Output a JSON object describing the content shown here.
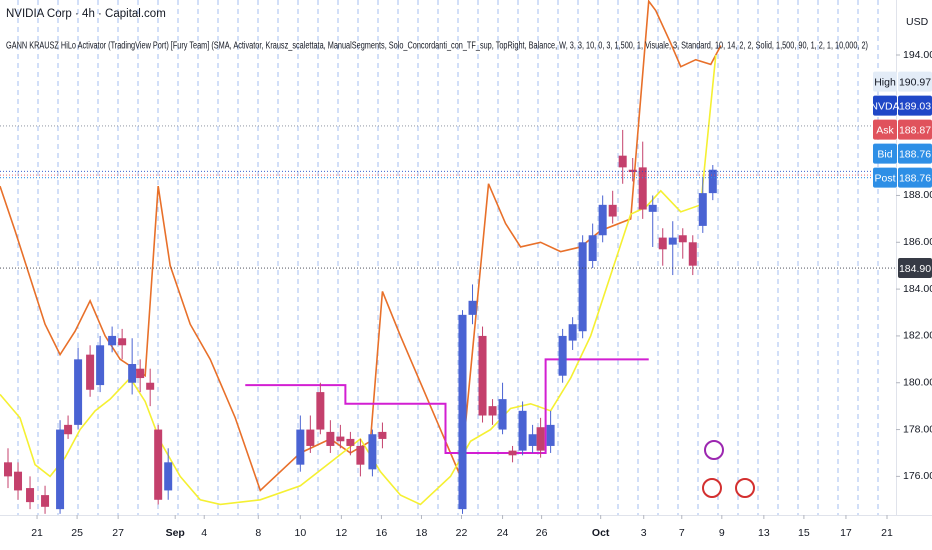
{
  "chart_data": {
    "type": "candlestick",
    "title": "NVIDIA Corp · 4h · Capital.com",
    "subtitle": "GANN KRAUSZ HiLo Activator (TradingView Port) [Fury Team] (SMA, Activator, Krausz_scalettata, ManualSegments, Solo_Concordanti_con_TF_sup, TopRight, Balance, W, 3, 3, 10, 0, 3, 1,500, 1, Visuale, 3, Standard, 10, 14, 2, 2, Solid, 1,500, 90, 1, 2, 1, 10,000, 2)",
    "currency": "USD",
    "up_color": "#4a63d3",
    "down_color": "#c4406c",
    "candles": [
      {
        "x": 0.8,
        "open": 176.6,
        "high": 177.2,
        "low": 175.5,
        "close": 176.0
      },
      {
        "x": 1.8,
        "open": 176.2,
        "high": 176.6,
        "low": 175.0,
        "close": 175.4
      },
      {
        "x": 3.0,
        "open": 175.5,
        "high": 176.0,
        "low": 174.6,
        "close": 174.9
      },
      {
        "x": 4.5,
        "open": 175.2,
        "high": 175.6,
        "low": 174.4,
        "close": 174.7
      },
      {
        "x": 6.0,
        "open": 174.6,
        "high": 178.4,
        "low": 174.4,
        "close": 178.0
      },
      {
        "x": 6.8,
        "open": 178.2,
        "high": 178.6,
        "low": 177.6,
        "close": 177.8
      },
      {
        "x": 7.8,
        "open": 178.2,
        "high": 181.5,
        "low": 178.0,
        "close": 181.0
      },
      {
        "x": 9.0,
        "open": 181.2,
        "high": 181.6,
        "low": 179.4,
        "close": 179.7
      },
      {
        "x": 10.0,
        "open": 179.9,
        "high": 182.0,
        "low": 179.6,
        "close": 181.6
      },
      {
        "x": 11.2,
        "open": 181.6,
        "high": 182.4,
        "low": 181.3,
        "close": 182.0
      },
      {
        "x": 12.2,
        "open": 181.9,
        "high": 182.3,
        "low": 181.0,
        "close": 181.6
      },
      {
        "x": 13.2,
        "open": 180.0,
        "high": 181.9,
        "low": 179.5,
        "close": 180.8
      },
      {
        "x": 14.0,
        "open": 180.6,
        "high": 181.0,
        "low": 179.6,
        "close": 180.2
      },
      {
        "x": 15.0,
        "open": 180.0,
        "high": 180.6,
        "low": 179.0,
        "close": 179.7
      },
      {
        "x": 15.8,
        "open": 178.0,
        "high": 178.2,
        "low": 174.8,
        "close": 175.0
      },
      {
        "x": 16.8,
        "open": 175.4,
        "high": 177.2,
        "low": 175.0,
        "close": 176.6
      },
      {
        "x": 30.0,
        "open": 176.5,
        "high": 178.6,
        "low": 176.2,
        "close": 178.0
      },
      {
        "x": 31.0,
        "open": 178.0,
        "high": 178.6,
        "low": 177.0,
        "close": 177.3
      },
      {
        "x": 32.0,
        "open": 179.6,
        "high": 180.0,
        "low": 177.8,
        "close": 178.0
      },
      {
        "x": 33.0,
        "open": 177.9,
        "high": 178.4,
        "low": 177.0,
        "close": 177.3
      },
      {
        "x": 34.0,
        "open": 177.7,
        "high": 178.2,
        "low": 177.2,
        "close": 177.5
      },
      {
        "x": 35.0,
        "open": 177.6,
        "high": 177.9,
        "low": 176.9,
        "close": 177.3
      },
      {
        "x": 36.0,
        "open": 177.3,
        "high": 177.6,
        "low": 176.0,
        "close": 176.5
      },
      {
        "x": 37.2,
        "open": 176.3,
        "high": 178.0,
        "low": 176.0,
        "close": 177.8
      },
      {
        "x": 38.2,
        "open": 177.9,
        "high": 178.3,
        "low": 177.2,
        "close": 177.6
      },
      {
        "x": 46.2,
        "open": 174.6,
        "high": 183.1,
        "low": 174.4,
        "close": 182.9
      },
      {
        "x": 47.2,
        "open": 182.9,
        "high": 184.2,
        "low": 182.5,
        "close": 183.5
      },
      {
        "x": 48.2,
        "open": 182.0,
        "high": 182.4,
        "low": 178.3,
        "close": 178.6
      },
      {
        "x": 49.2,
        "open": 179.0,
        "high": 179.3,
        "low": 178.2,
        "close": 178.6
      },
      {
        "x": 50.2,
        "open": 178.0,
        "high": 180.0,
        "low": 177.8,
        "close": 179.3
      },
      {
        "x": 51.2,
        "open": 177.1,
        "high": 177.3,
        "low": 176.6,
        "close": 176.9
      },
      {
        "x": 52.2,
        "open": 177.1,
        "high": 179.2,
        "low": 176.9,
        "close": 178.8
      },
      {
        "x": 53.2,
        "open": 177.3,
        "high": 178.2,
        "low": 177.0,
        "close": 177.8
      },
      {
        "x": 54.0,
        "open": 178.1,
        "high": 178.5,
        "low": 176.8,
        "close": 177.1
      },
      {
        "x": 55.0,
        "open": 177.3,
        "high": 178.8,
        "low": 177.0,
        "close": 178.2
      },
      {
        "x": 56.2,
        "open": 180.3,
        "high": 182.3,
        "low": 180.0,
        "close": 182.0
      },
      {
        "x": 57.2,
        "open": 181.8,
        "high": 182.8,
        "low": 181.4,
        "close": 182.5
      },
      {
        "x": 58.2,
        "open": 182.2,
        "high": 186.3,
        "low": 181.9,
        "close": 186.0
      },
      {
        "x": 59.2,
        "open": 185.2,
        "high": 186.8,
        "low": 184.9,
        "close": 186.3
      },
      {
        "x": 60.2,
        "open": 186.3,
        "high": 188.0,
        "low": 186.0,
        "close": 187.6
      },
      {
        "x": 61.2,
        "open": 187.6,
        "high": 188.2,
        "low": 186.8,
        "close": 187.1
      },
      {
        "x": 62.2,
        "open": 189.7,
        "high": 190.8,
        "low": 188.5,
        "close": 189.2
      },
      {
        "x": 63.2,
        "open": 189.1,
        "high": 189.6,
        "low": 188.6,
        "close": 189.0
      },
      {
        "x": 64.2,
        "open": 189.2,
        "high": 190.3,
        "low": 187.0,
        "close": 187.4
      },
      {
        "x": 65.2,
        "open": 187.3,
        "high": 188.0,
        "low": 185.8,
        "close": 187.6
      },
      {
        "x": 66.2,
        "open": 186.2,
        "high": 186.6,
        "low": 185.0,
        "close": 185.7
      },
      {
        "x": 67.2,
        "open": 185.9,
        "high": 186.9,
        "low": 184.6,
        "close": 186.2
      },
      {
        "x": 68.2,
        "open": 186.3,
        "high": 186.6,
        "low": 185.3,
        "close": 186.0
      },
      {
        "x": 69.2,
        "open": 186.0,
        "high": 186.3,
        "low": 184.6,
        "close": 185.0
      },
      {
        "x": 70.2,
        "open": 186.7,
        "high": 188.8,
        "low": 186.4,
        "close": 188.1
      },
      {
        "x": 71.2,
        "open": 188.1,
        "high": 189.3,
        "low": 187.8,
        "close": 189.1
      }
    ],
    "lines": [
      {
        "color": "#e8702a",
        "x": [
          0,
          1.5,
          3,
          4.5,
          6,
          7.5,
          9,
          10.5,
          12,
          14.5,
          15.8,
          17,
          19,
          21,
          23.5,
          26,
          30,
          33,
          35,
          37,
          38.2,
          40,
          42,
          44,
          46,
          48.8,
          50.5,
          52,
          54,
          56,
          58,
          60,
          63,
          64.8,
          65.5,
          67,
          68,
          69.5,
          71,
          72
        ],
        "values": [
          188.4,
          186.5,
          184.5,
          182.5,
          181.2,
          182.2,
          183.5,
          182.0,
          181.0,
          180.3,
          188.4,
          185.0,
          182.5,
          181.0,
          178.5,
          175.4,
          177.0,
          177.6,
          177.0,
          177.5,
          183.9,
          182.0,
          180.0,
          178.0,
          176.0,
          188.5,
          186.8,
          185.8,
          186.0,
          185.6,
          185.8,
          186.5,
          187.0,
          196.3,
          195.9,
          194.5,
          193.5,
          193.8,
          193.6,
          194.4
        ]
      },
      {
        "color": "#f5f032",
        "x": [
          0,
          2,
          3.5,
          5,
          6.5,
          8,
          9.5,
          11,
          13,
          14.5,
          16,
          18,
          20,
          22,
          26,
          30,
          33,
          36,
          38,
          40,
          42,
          45,
          47,
          49,
          51,
          53,
          55,
          57,
          59,
          61,
          63,
          64.5,
          66,
          68,
          70,
          71.5
        ],
        "values": [
          179.5,
          178.5,
          176.5,
          176.0,
          176.8,
          178.0,
          178.8,
          179.3,
          180.2,
          179.2,
          177.5,
          176.0,
          175.0,
          174.8,
          175.0,
          175.6,
          176.6,
          177.6,
          176.2,
          175.2,
          174.8,
          176.0,
          177.5,
          178.0,
          178.9,
          179.1,
          178.8,
          180.2,
          182.0,
          184.6,
          187.2,
          187.5,
          188.2,
          187.3,
          187.6,
          194.0
        ]
      },
      {
        "color": "#d21fd2",
        "x": [
          24.5,
          34.5,
          34.5,
          44.5,
          44.5,
          54.5,
          54.5,
          64.8
        ],
        "values": [
          179.9,
          179.9,
          179.1,
          179.1,
          177.0,
          177.0,
          181.0,
          181.0
        ]
      }
    ],
    "ylim": [
      174.35,
      196.35
    ],
    "yticks": [
      {
        "value": 176,
        "label": "176.00"
      },
      {
        "value": 178,
        "label": "178.00"
      },
      {
        "value": 180,
        "label": "180.00"
      },
      {
        "value": 182,
        "label": "182.00"
      },
      {
        "value": 184,
        "label": "184.00"
      },
      {
        "value": 186,
        "label": "186.00"
      },
      {
        "value": 188,
        "label": "188.00"
      },
      {
        "value": 194,
        "label": "194.00"
      }
    ],
    "xlim": [
      0,
      89.5
    ],
    "xticks": [
      {
        "value": 3.7,
        "label": "21"
      },
      {
        "value": 7.7,
        "label": "25"
      },
      {
        "value": 11.8,
        "label": "27"
      },
      {
        "value": 17.5,
        "label": "Sep"
      },
      {
        "value": 20.4,
        "label": "4"
      },
      {
        "value": 25.8,
        "label": "8"
      },
      {
        "value": 30.0,
        "label": "10"
      },
      {
        "value": 34.1,
        "label": "12"
      },
      {
        "value": 38.1,
        "label": "16"
      },
      {
        "value": 42.1,
        "label": "18"
      },
      {
        "value": 46.1,
        "label": "22"
      },
      {
        "value": 50.2,
        "label": "24"
      },
      {
        "value": 54.1,
        "label": "26"
      },
      {
        "value": 60.0,
        "label": "Oct"
      },
      {
        "value": 64.3,
        "label": "3"
      },
      {
        "value": 68.1,
        "label": "7"
      },
      {
        "value": 72.1,
        "label": "9"
      },
      {
        "value": 76.3,
        "label": "13"
      },
      {
        "value": 80.3,
        "label": "15"
      },
      {
        "value": 84.5,
        "label": "17"
      },
      {
        "value": 88.6,
        "label": "21"
      }
    ],
    "price_labels": {
      "names": [
        "High",
        "NVDA",
        "Ask",
        "Bid",
        "Post",
        null
      ],
      "values": [
        190.97,
        189.03,
        188.87,
        188.76,
        188.76,
        184.9
      ],
      "value_labels": [
        "190.97",
        "189.03",
        "188.87",
        "188.76",
        "188.76",
        "184.90"
      ],
      "colors": [
        "#e3ecf7",
        "#1f47c7",
        "#e0525c",
        "#2e8fe6",
        "#2e8fe6",
        "#363a45"
      ]
    }
  }
}
